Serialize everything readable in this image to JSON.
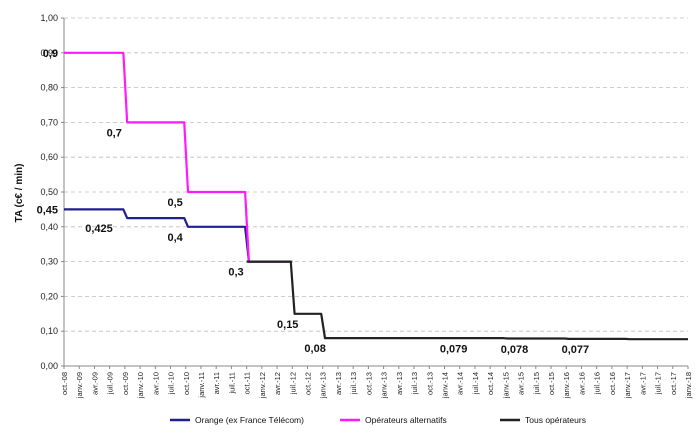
{
  "chart_data": {
    "type": "line",
    "ylabel": "TA (c€ / min)",
    "ylim": [
      0,
      1
    ],
    "yticks": [
      "0,00",
      "0,10",
      "0,20",
      "0,30",
      "0,40",
      "0,50",
      "0,60",
      "0,70",
      "0,80",
      "0,90",
      "1,00"
    ],
    "grid": true,
    "legend_position": "bottom",
    "x_categories": [
      "oct.-08",
      "janv.-09",
      "avr.-09",
      "juil.-09",
      "oct.-09",
      "janv.-10",
      "avr.-10",
      "juil.-10",
      "oct.-10",
      "janv.-11",
      "avr.-11",
      "juil.-11",
      "oct.-11",
      "janv.-12",
      "avr.-12",
      "juil.-12",
      "oct.-12",
      "janv.-13",
      "avr.-13",
      "juil.-13",
      "oct.-13",
      "janv.-13",
      "avr.-13",
      "juil.-13",
      "oct.-13",
      "janv.-14",
      "avr.-14",
      "juil.-14",
      "oct.-14",
      "janv.-15",
      "avr.-15",
      "juil.-15",
      "oct.-15",
      "janv.-16",
      "avr.-16",
      "juil.-16",
      "oct.-16",
      "janv.-17",
      "avr.-17",
      "juil.-17",
      "oct.-17",
      "janv.-18"
    ],
    "series": [
      {
        "name": "Orange (ex France Télécom)",
        "color": "#1f1f8f",
        "values": [
          0.45,
          0.45,
          0.45,
          0.45,
          0.425,
          0.425,
          0.425,
          0.425,
          0.4,
          0.4,
          0.4,
          0.4,
          0.3,
          0.3,
          0.3,
          0.3
        ]
      },
      {
        "name": "Opérateurs alternatifs",
        "color": "#ff19ff",
        "values": [
          0.9,
          0.9,
          0.9,
          0.9,
          0.7,
          0.7,
          0.7,
          0.7,
          0.5,
          0.5,
          0.5,
          0.5,
          0.3,
          0.3,
          0.3,
          0.3
        ]
      },
      {
        "name": "Tous opérateurs",
        "color": "#222222",
        "values": [
          null,
          null,
          null,
          null,
          null,
          null,
          null,
          null,
          null,
          null,
          null,
          null,
          0.3,
          0.3,
          0.3,
          0.15,
          0.15,
          0.08,
          0.08,
          0.08,
          0.08,
          0.08,
          0.08,
          0.08,
          0.08,
          0.08,
          0.08,
          0.08,
          0.08,
          0.079,
          0.079,
          0.079,
          0.079,
          0.078,
          0.078,
          0.078,
          0.078,
          0.077,
          0.077,
          0.077,
          0.077,
          0.077
        ]
      }
    ],
    "annotations": [
      {
        "text": "0,9",
        "x": 0,
        "y": 0.9
      },
      {
        "text": "0,7",
        "x": 3.3,
        "y": 0.7
      },
      {
        "text": "0,45",
        "x": 0,
        "y": 0.45
      },
      {
        "text": "0,425",
        "x": 2.3,
        "y": 0.425
      },
      {
        "text": "0,5",
        "x": 7.3,
        "y": 0.5
      },
      {
        "text": "0,4",
        "x": 7.3,
        "y": 0.4
      },
      {
        "text": "0,3",
        "x": 11.3,
        "y": 0.3
      },
      {
        "text": "0,15",
        "x": 14.7,
        "y": 0.15
      },
      {
        "text": "0,08",
        "x": 16.5,
        "y": 0.08
      },
      {
        "text": "0,079",
        "x": 25.6,
        "y": 0.079
      },
      {
        "text": "0,078",
        "x": 29.6,
        "y": 0.078
      },
      {
        "text": "0,077",
        "x": 33.6,
        "y": 0.077
      }
    ]
  }
}
